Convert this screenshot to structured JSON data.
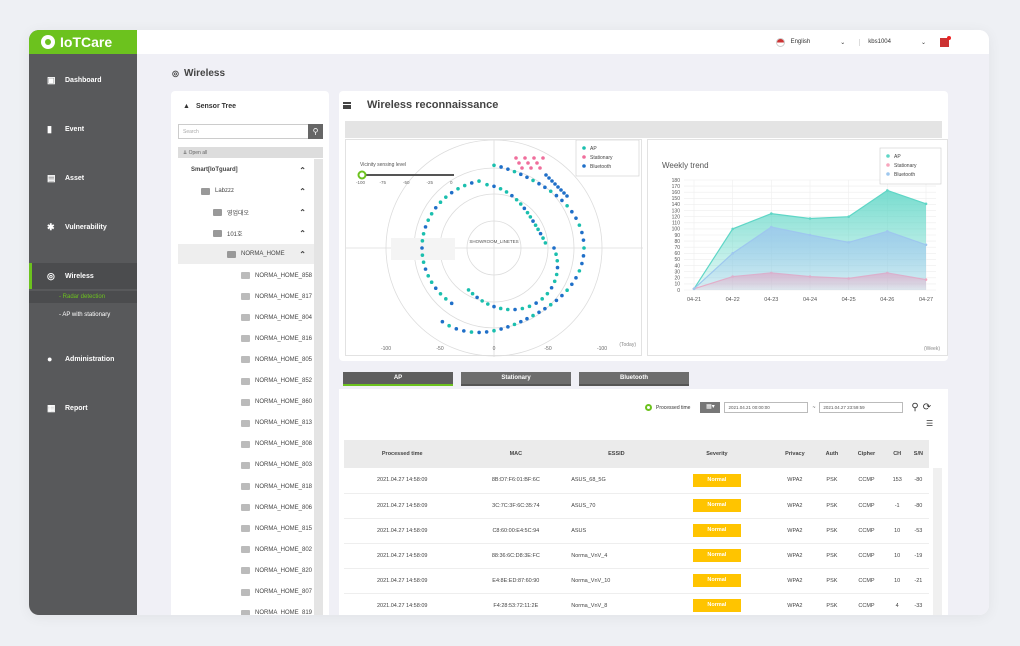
{
  "brand": {
    "name": "IoTCare",
    "accent": "#6cc21e"
  },
  "header": {
    "language": "English",
    "user": "kbs1004"
  },
  "nav": [
    {
      "label": "Dashboard",
      "icon": "chart-icon"
    },
    {
      "label": "Event",
      "icon": "bar-icon"
    },
    {
      "label": "Asset",
      "icon": "monitor-icon"
    },
    {
      "label": "Vulnerability",
      "icon": "bug-icon"
    },
    {
      "label": "Wireless",
      "icon": "wifi-icon",
      "sub": [
        "- Radar detection",
        "- AP with stationary"
      ]
    },
    {
      "label": "Administration",
      "icon": "user-icon"
    },
    {
      "label": "Report",
      "icon": "report-icon"
    }
  ],
  "page": {
    "title": "Wireless"
  },
  "tree": {
    "title": "Sensor Tree",
    "search_placeholder": "Search",
    "open_all": "Open all",
    "root": "Smart[IoTguard]",
    "nodes": [
      "Labzzz",
      "영업대오",
      "101호",
      "NORMA_HOME"
    ],
    "leaves": [
      "NORMA_HOME_858",
      "NORMA_HOME_817",
      "NORMA_HOME_804",
      "NORMA_HOME_816",
      "NORMA_HOME_805",
      "NORMA_HOME_852",
      "NORMA_HOME_860",
      "NORMA_HOME_813",
      "NORMA_HOME_808",
      "NORMA_HOME_803",
      "NORMA_HOME_818",
      "NORMA_HOME_806",
      "NORMA_HOME_815",
      "NORMA_HOME_802",
      "NORMA_HOME_820",
      "NORMA_HOME_807",
      "NORMA_HOME_819"
    ]
  },
  "panel": {
    "title": "Wireless reconnaissance"
  },
  "radar": {
    "sensing_label": "Vicinity sensing level",
    "slider_ticks": [
      "-100",
      "-75",
      "-50",
      "-25",
      "0"
    ],
    "center_label": "SHOWROOM_LINETES",
    "axis_ticks": [
      "-100",
      "-50",
      "0",
      "-50",
      "-100"
    ],
    "period": "(Today)",
    "legend": [
      "AP",
      "Stationary",
      "Bluetooth"
    ]
  },
  "chart_data": {
    "type": "area",
    "title": "Weekly trend",
    "period_label": "(Week)",
    "categories": [
      "04-21",
      "04-22",
      "04-23",
      "04-24",
      "04-25",
      "04-26",
      "04-27"
    ],
    "ylim": [
      0,
      180
    ],
    "yticks": [
      0,
      10,
      20,
      30,
      40,
      50,
      60,
      70,
      80,
      90,
      100,
      110,
      120,
      130,
      140,
      150,
      160,
      170,
      180
    ],
    "series": [
      {
        "name": "AP",
        "color": "#5fd6c6",
        "values": [
          2,
          100,
          125,
          117,
          120,
          163,
          141
        ]
      },
      {
        "name": "Stationary",
        "color": "#f7a6bd",
        "values": [
          2,
          22,
          28,
          22,
          19,
          28,
          17
        ]
      },
      {
        "name": "Bluetooth",
        "color": "#9ec7ee",
        "values": [
          2,
          60,
          103,
          90,
          78,
          96,
          74
        ]
      }
    ]
  },
  "tabs": [
    "AP",
    "Stationary",
    "Bluetooth"
  ],
  "filter": {
    "label": "Processed time",
    "start": "2021.04.21 00:00:00",
    "end": "2021.04.27 23:59:59",
    "sep": "~"
  },
  "table": {
    "columns": [
      "Processed time",
      "MAC",
      "ESSID",
      "Severity",
      "Privacy",
      "Auth",
      "Cipher",
      "CH",
      "S/N"
    ],
    "rows": [
      [
        "2021.04.27 14:58:09",
        "8B:D7:F6:01:BF:6C",
        "ASUS_68_5G",
        "Normal",
        "WPA2",
        "PSK",
        "CCMP",
        "153",
        "-80"
      ],
      [
        "2021.04.27 14:58:09",
        "3C:7C:3F:6C:35:74",
        "ASUS_70",
        "Normal",
        "WPA2",
        "PSK",
        "CCMP",
        "-1",
        "-80"
      ],
      [
        "2021.04.27 14:58:09",
        "C8:60:00:E4:5C:94",
        "ASUS",
        "Normal",
        "WPA2",
        "PSK",
        "CCMP",
        "10",
        "-53"
      ],
      [
        "2021.04.27 14:58:09",
        "88:36:6C:D8:3E:FC",
        "Norma_VnV_4",
        "Normal",
        "WPA2",
        "PSK",
        "CCMP",
        "10",
        "-19"
      ],
      [
        "2021.04.27 14:58:09",
        "E4:8E:ED:87:60:90",
        "Norma_VnV_10",
        "Normal",
        "WPA2",
        "PSK",
        "CCMP",
        "10",
        "-21"
      ],
      [
        "2021.04.27 14:58:09",
        "F4:28:53:72:11:2E",
        "Norma_VnV_8",
        "Normal",
        "WPA2",
        "PSK",
        "CCMP",
        "4",
        "-33"
      ]
    ]
  }
}
